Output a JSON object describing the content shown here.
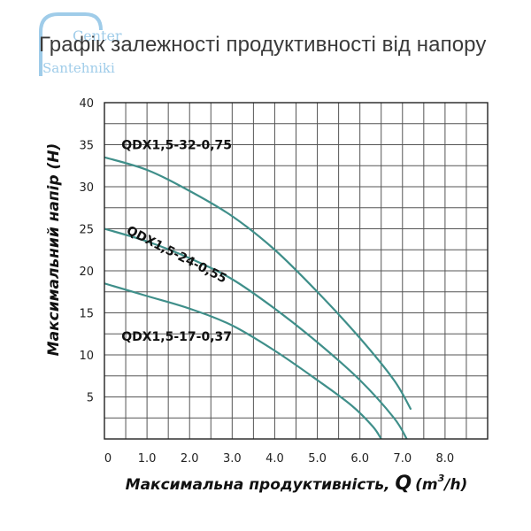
{
  "page": {
    "title": "Графік залежності продуктивності від напору",
    "watermark_line1": "Center",
    "watermark_line2": "Santehniki"
  },
  "colors": {
    "curve": "#3f8f8a",
    "grid": "#555555",
    "axis": "#222222",
    "title": "#3a3a3a",
    "watermark": "#8fc4e6"
  },
  "chart_data": {
    "type": "line",
    "title": "Графік залежності продуктивності від напору",
    "xlabel_main": "Максимальна продуктивність, ",
    "xlabel_symbol": "Q",
    "xlabel_unit_pre": "(m",
    "xlabel_unit_sup": "3",
    "xlabel_unit_post": "/h)",
    "ylabel": "Максимальний напір (Н)",
    "xlim": [
      0,
      9
    ],
    "ylim": [
      0,
      40
    ],
    "grid": true,
    "x_ticks": [
      "0",
      "1.0",
      "2.0",
      "3.0",
      "4.0",
      "5.0",
      "6.0",
      "7.0",
      "8.0"
    ],
    "y_ticks": [
      "5",
      "10",
      "15",
      "20",
      "25",
      "30",
      "35",
      "40"
    ],
    "series": [
      {
        "name": "QDX1,5-32-0,75",
        "x": [
          0,
          1,
          2,
          3,
          4,
          5,
          6,
          6.8,
          7.2
        ],
        "y": [
          33.5,
          32,
          29.5,
          26.5,
          22.5,
          17.5,
          12.0,
          7.0,
          3.5
        ]
      },
      {
        "name": "QDX1,5-24-0,55",
        "x": [
          0,
          1,
          2,
          3,
          4,
          5,
          6,
          6.8,
          7.1
        ],
        "y": [
          25,
          23.5,
          21.5,
          19,
          15.5,
          11.5,
          7.0,
          2.5,
          0
        ]
      },
      {
        "name": "QDX1,5-17-0,37",
        "x": [
          0,
          1,
          2,
          3,
          4,
          5,
          5.8,
          6.3,
          6.5
        ],
        "y": [
          18.5,
          17,
          15.5,
          13.5,
          10.5,
          7.0,
          4.0,
          1.5,
          0
        ]
      }
    ],
    "series_labels": [
      {
        "text": "QDX1,5-32-0,75",
        "x": 0.4,
        "y": 34.5,
        "rotate": 0
      },
      {
        "text": "QDX1,5-24-0,55",
        "x": 0.5,
        "y": 24.5,
        "rotate": 27
      },
      {
        "text": "QDX1,5-17-0,37",
        "x": 0.4,
        "y": 11.7,
        "rotate": 0
      }
    ]
  }
}
